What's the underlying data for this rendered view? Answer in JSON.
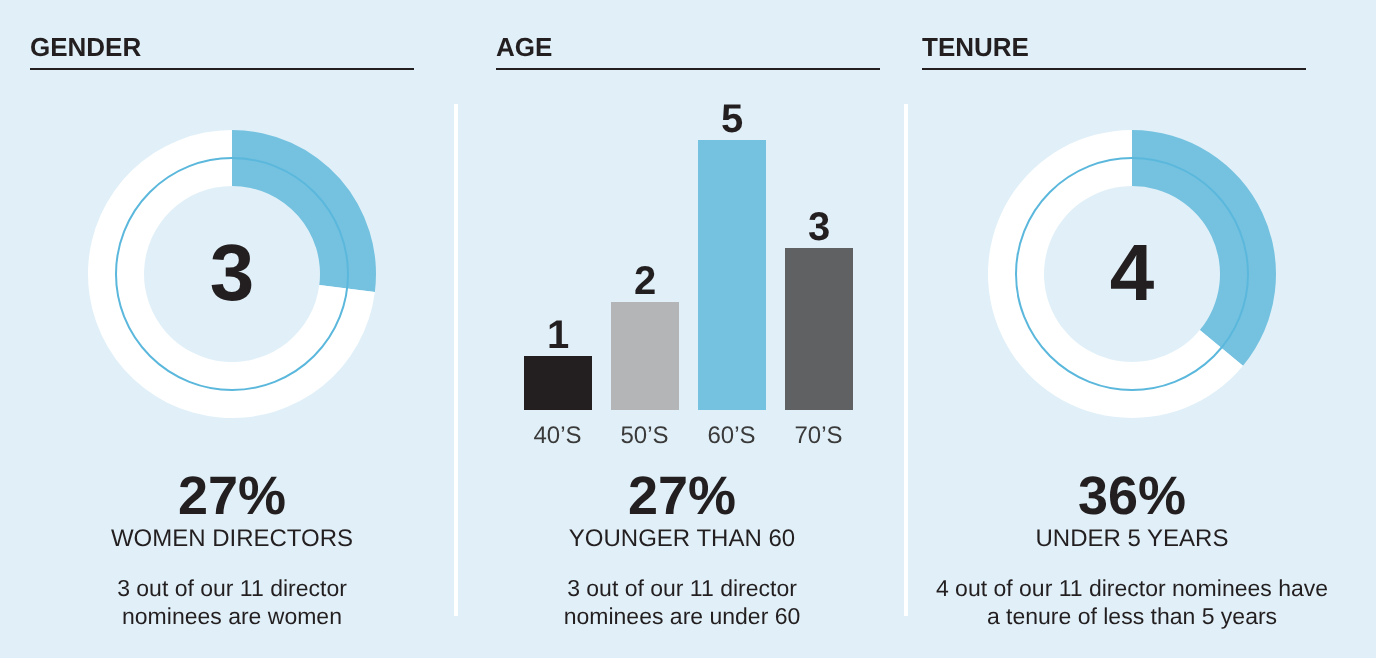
{
  "chart_data": [
    {
      "type": "donut",
      "title": "GENDER",
      "categories": [
        null,
        null
      ],
      "values": [
        27,
        73
      ],
      "colors": [
        "#75c2e0",
        "#ffffff"
      ],
      "annotations": [
        "3",
        "27%",
        "WOMEN DIRECTORS",
        "3 out of our 11 director nominees are women"
      ]
    },
    {
      "type": "bar",
      "title": "AGE",
      "categories": [
        "40’S",
        "50’S",
        "60’S",
        "70’S"
      ],
      "values": [
        1,
        2,
        5,
        3
      ],
      "colors": [
        "#231f20",
        "#b3b5b6",
        "#75c2e0",
        "#606163"
      ],
      "data_labels": true,
      "tick_labels": "x",
      "annotations": [
        "27%",
        "YOUNGER THAN 60",
        "3 out of our 11 director nominees are under 60"
      ]
    },
    {
      "type": "donut",
      "title": "TENURE",
      "categories": [
        null,
        null
      ],
      "values": [
        36,
        64
      ],
      "colors": [
        "#75c2e0",
        "#ffffff"
      ],
      "annotations": [
        "4",
        "36%",
        "UNDER 5 YEARS",
        "4 out of our 11 director nominees have a tenure of less than 5 years"
      ]
    }
  ]
}
